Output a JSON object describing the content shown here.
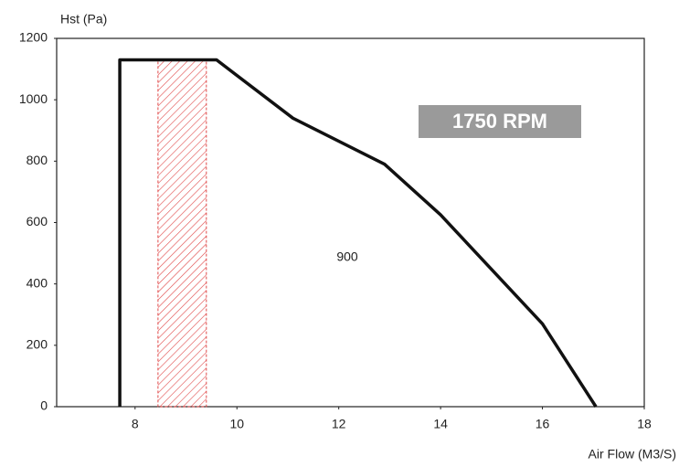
{
  "chart_data": {
    "type": "line",
    "y_label": "Hst (Pa)",
    "x_label": "Air Flow (M3/S)",
    "xlim": [
      6.46,
      18
    ],
    "xticks": [
      8,
      10,
      12,
      14,
      16,
      18
    ],
    "ylim": [
      0,
      1200
    ],
    "yticks": [
      0,
      200,
      400,
      600,
      800,
      1000,
      1200
    ],
    "series": [
      {
        "color": "#111111",
        "x": [
          7.7,
          7.7,
          9.6,
          11.1,
          12.9,
          14,
          16,
          17.05
        ],
        "values": [
          0,
          1130,
          1130,
          940,
          790,
          625,
          270,
          0
        ]
      }
    ],
    "shaded_region": {
      "x": [
        8.45,
        9.4
      ],
      "y": [
        0,
        1130
      ],
      "color": "#e04848"
    },
    "annotations": [
      "900",
      "1750 RPM"
    ]
  }
}
